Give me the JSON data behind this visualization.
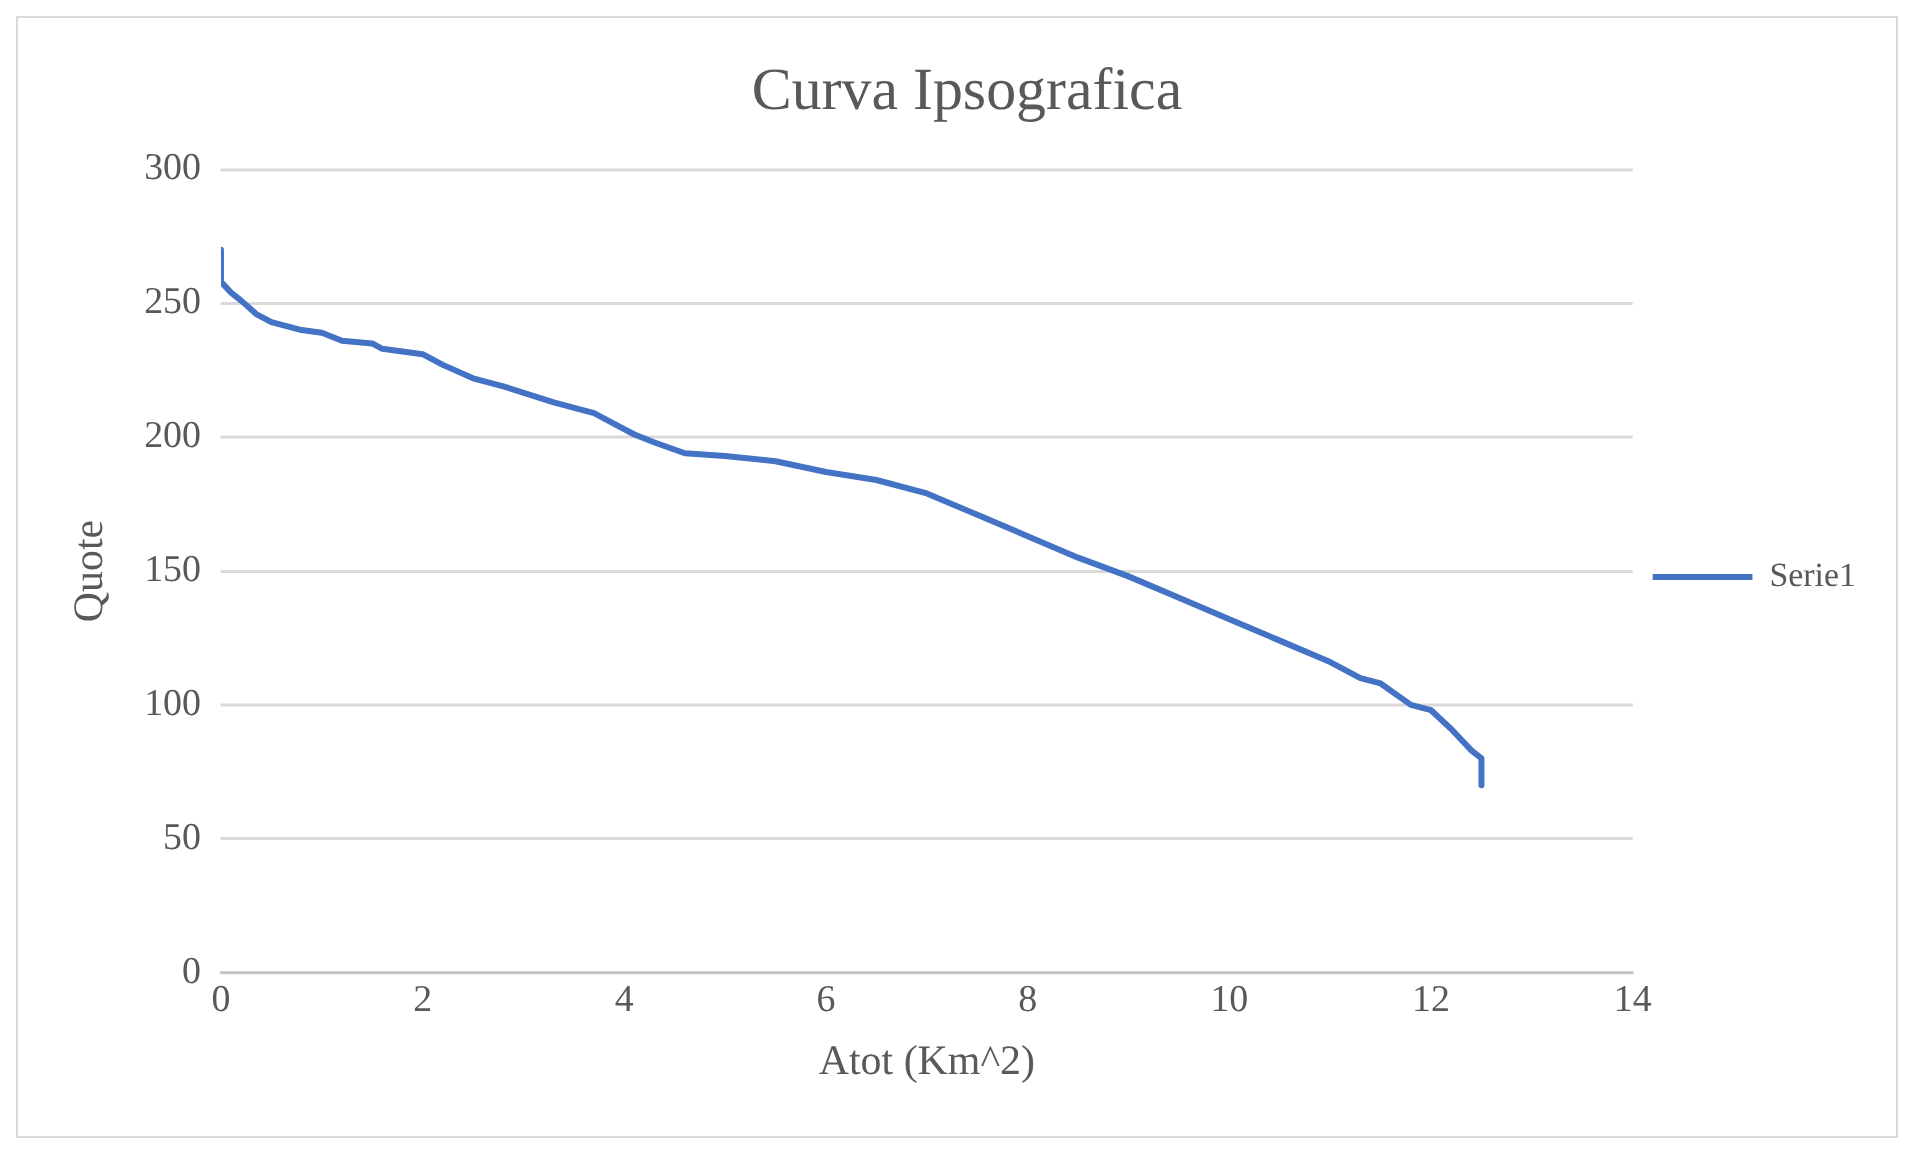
{
  "chart_data": {
    "type": "line",
    "title": "Curva Ipsografica",
    "xlabel": "Atot (Km^2)",
    "ylabel": "Quote",
    "x": [
      0,
      0,
      0.1,
      0.2,
      0.35,
      0.5,
      0.8,
      1,
      1.2,
      1.5,
      1.6,
      2,
      2.2,
      2.5,
      2.8,
      3.3,
      3.7,
      3.9,
      4.1,
      4.3,
      4.6,
      5,
      5.5,
      6,
      6.5,
      7,
      7.5,
      8,
      8.5,
      9,
      9.5,
      10,
      10.5,
      11,
      11.3,
      11.5,
      11.8,
      12,
      12.2,
      12.4,
      12.5,
      12.5
    ],
    "series": [
      {
        "name": "Serie1",
        "color": "#4472c4",
        "values": [
          270,
          258,
          254,
          251,
          246,
          243,
          240,
          239,
          236,
          235,
          233,
          231,
          227,
          222,
          219,
          213,
          209,
          205,
          201,
          198,
          194,
          193,
          191,
          187,
          184,
          179,
          171,
          163,
          155,
          148,
          140,
          132,
          124,
          116,
          110,
          108,
          100,
          98,
          91,
          83,
          80,
          70
        ]
      }
    ],
    "xlim": [
      0,
      14
    ],
    "xticks": [
      0,
      2,
      4,
      6,
      8,
      10,
      12,
      14
    ],
    "ylim": [
      0,
      300
    ],
    "yticks": [
      0,
      50,
      100,
      150,
      200,
      250,
      300
    ],
    "grid": "y",
    "legend": "right",
    "marker": "none",
    "line_style": "solid"
  }
}
